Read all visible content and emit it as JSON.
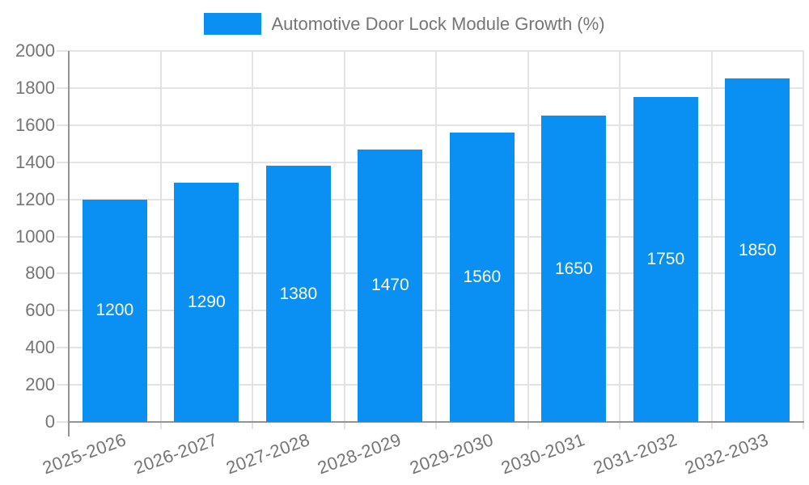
{
  "chart_data": {
    "type": "bar",
    "title": "",
    "legend": {
      "position": "top",
      "label": "Automotive Door Lock Module Growth (%)"
    },
    "categories": [
      "2025-2026",
      "2026-2027",
      "2027-2028",
      "2028-2029",
      "2029-2030",
      "2030-2031",
      "2031-2032",
      "2032-2033"
    ],
    "series": [
      {
        "name": "Automotive Door Lock Module Growth (%)",
        "values": [
          1200,
          1290,
          1380,
          1470,
          1560,
          1650,
          1750,
          1850
        ]
      }
    ],
    "xlabel": "",
    "ylabel": "",
    "ylim": [
      0,
      2000
    ],
    "ytick_interval": 200,
    "yticks": [
      0,
      200,
      400,
      600,
      800,
      1000,
      1200,
      1400,
      1600,
      1800,
      2000
    ],
    "grid": true,
    "x_label_rotation_deg": -20,
    "colors": {
      "bar": "#0990f2",
      "bar_value_text": "#ffffff",
      "axis_text": "#757575",
      "gridline": "#e3e3e3",
      "axis_line": "#949494",
      "background": "#ffffff"
    }
  }
}
